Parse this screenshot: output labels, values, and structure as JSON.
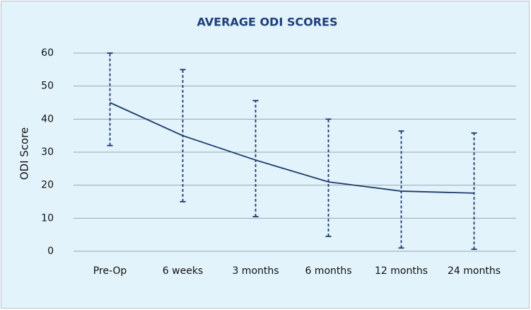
{
  "chart_data": {
    "type": "line",
    "title": "AVERAGE ODI SCORES",
    "y_label": "ODI Score",
    "categories": [
      "Pre-Op",
      "6 weeks",
      "3 months",
      "6 months",
      "12 months",
      "24 months"
    ],
    "series": [
      {
        "name": "ODI Score",
        "color": "#1f3a6b",
        "values": [
          45,
          35,
          27.6,
          21,
          18.2,
          17.6
        ],
        "err_low": [
          32,
          15,
          10.5,
          4.5,
          1,
          0.6
        ],
        "err_high": [
          60,
          55,
          45.6,
          40,
          36.4,
          35.8
        ]
      }
    ],
    "ylim": [
      0,
      60
    ],
    "yticks": [
      0,
      10,
      20,
      30,
      40,
      50,
      60
    ],
    "grid": true
  }
}
